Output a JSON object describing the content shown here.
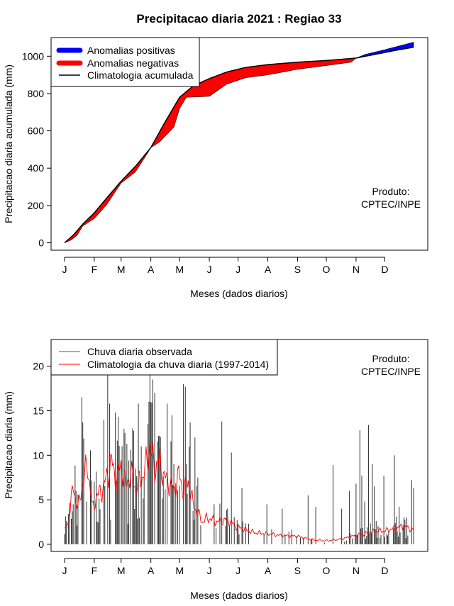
{
  "title": "Precipitacao diaria 2021 : Regiao 33",
  "colors": {
    "positive": "#0000ff",
    "negative": "#ff0000",
    "climatology_line": "#000000",
    "observed": "#000000",
    "clim_daily": "#ff0000"
  },
  "chart_data": [
    {
      "type": "area",
      "name": "accumulated",
      "ylabel": "Precipitacao diaria acumulada (mm)",
      "xlabel": "Meses (dados diarios)",
      "ylim": [
        -40,
        1100
      ],
      "y_ticks": [
        0,
        200,
        400,
        600,
        800,
        1000
      ],
      "x_ticks": [
        {
          "label": "J",
          "day": 1
        },
        {
          "label": "F",
          "day": 32
        },
        {
          "label": "M",
          "day": 60
        },
        {
          "label": "A",
          "day": 91
        },
        {
          "label": "M",
          "day": 121
        },
        {
          "label": "J",
          "day": 152
        },
        {
          "label": "J",
          "day": 182
        },
        {
          "label": "A",
          "day": 213
        },
        {
          "label": "S",
          "day": 244
        },
        {
          "label": "O",
          "day": 274
        },
        {
          "label": "N",
          "day": 305
        },
        {
          "label": "D",
          "day": 335
        }
      ],
      "legend": {
        "position": "top-left",
        "entries": [
          "Anomalias positivas",
          "Anomalias negativas",
          "Climatologia acumulada"
        ]
      },
      "annotation": [
        "Produto:",
        "CPTEC/INPE"
      ],
      "climatology": {
        "days": [
          1,
          10,
          20,
          32,
          45,
          60,
          75,
          91,
          105,
          121,
          135,
          152,
          170,
          190,
          213,
          244,
          274,
          305,
          320,
          335,
          350,
          365
        ],
        "values": [
          0,
          40,
          100,
          160,
          240,
          330,
          410,
          510,
          640,
          780,
          840,
          880,
          915,
          940,
          955,
          968,
          977,
          990,
          1005,
          1020,
          1035,
          1048
        ]
      },
      "observed": {
        "days": [
          1,
          8,
          14,
          20,
          32,
          45,
          60,
          75,
          85,
          91,
          100,
          115,
          121,
          128,
          152,
          170,
          190,
          213,
          244,
          274,
          300,
          305,
          315,
          335,
          350,
          365
        ],
        "values": [
          0,
          15,
          40,
          90,
          130,
          205,
          320,
          380,
          460,
          510,
          540,
          620,
          720,
          780,
          785,
          850,
          885,
          900,
          930,
          950,
          968,
          990,
          1010,
          1035,
          1055,
          1075
        ]
      }
    },
    {
      "type": "bar",
      "name": "daily",
      "ylabel": "Precipitacao diaria (mm)",
      "xlabel": "Meses (dados diarios)",
      "ylim": [
        -0.8,
        23
      ],
      "y_ticks": [
        0,
        5,
        10,
        15,
        20
      ],
      "x_ticks": [
        {
          "label": "J",
          "day": 1
        },
        {
          "label": "F",
          "day": 32
        },
        {
          "label": "M",
          "day": 60
        },
        {
          "label": "A",
          "day": 91
        },
        {
          "label": "M",
          "day": 121
        },
        {
          "label": "J",
          "day": 152
        },
        {
          "label": "J",
          "day": 182
        },
        {
          "label": "A",
          "day": 213
        },
        {
          "label": "S",
          "day": 244
        },
        {
          "label": "O",
          "day": 274
        },
        {
          "label": "N",
          "day": 305
        },
        {
          "label": "D",
          "day": 335
        }
      ],
      "legend": {
        "position": "top-left",
        "entries": [
          "Chuva diaria observada",
          "Climatologia da chuva diaria (1997-2014)"
        ]
      },
      "annotation": [
        "Produto:",
        "CPTEC/INPE"
      ],
      "observed_peaks": [
        {
          "day": 19,
          "value": 16.5
        },
        {
          "day": 20,
          "value": 13.7
        },
        {
          "day": 10,
          "value": 4.5
        },
        {
          "day": 13,
          "value": 6.0
        },
        {
          "day": 42,
          "value": 14.0
        },
        {
          "day": 46,
          "value": 19.2
        },
        {
          "day": 48,
          "value": 15.8
        },
        {
          "day": 54,
          "value": 14.8
        },
        {
          "day": 57,
          "value": 14.3
        },
        {
          "day": 64,
          "value": 12.5
        },
        {
          "day": 72,
          "value": 13.0
        },
        {
          "day": 78,
          "value": 15.8
        },
        {
          "day": 88,
          "value": 13.5
        },
        {
          "day": 90,
          "value": 19.0
        },
        {
          "day": 93,
          "value": 18.5
        },
        {
          "day": 95,
          "value": 17.0
        },
        {
          "day": 108,
          "value": 15.8
        },
        {
          "day": 113,
          "value": 14.5
        },
        {
          "day": 125,
          "value": 18.0
        },
        {
          "day": 127,
          "value": 17.7
        },
        {
          "day": 132,
          "value": 13.7
        },
        {
          "day": 137,
          "value": 12.0
        },
        {
          "day": 140,
          "value": 7.5
        },
        {
          "day": 165,
          "value": 13.8
        },
        {
          "day": 175,
          "value": 10.3
        },
        {
          "day": 186,
          "value": 6.3
        },
        {
          "day": 212,
          "value": 4.5
        },
        {
          "day": 228,
          "value": 4.0
        },
        {
          "day": 255,
          "value": 5.5
        },
        {
          "day": 263,
          "value": 4.2
        },
        {
          "day": 281,
          "value": 8.9
        },
        {
          "day": 290,
          "value": 4.0
        },
        {
          "day": 298,
          "value": 6.0
        },
        {
          "day": 305,
          "value": 6.8
        },
        {
          "day": 309,
          "value": 12.8
        },
        {
          "day": 311,
          "value": 7.7
        },
        {
          "day": 314,
          "value": 4.8
        },
        {
          "day": 318,
          "value": 13.4
        },
        {
          "day": 322,
          "value": 9.0
        },
        {
          "day": 324,
          "value": 6.5
        },
        {
          "day": 334,
          "value": 7.7
        },
        {
          "day": 345,
          "value": 10.0
        },
        {
          "day": 350,
          "value": 4.2
        },
        {
          "day": 358,
          "value": 3.0
        },
        {
          "day": 363,
          "value": 7.2
        },
        {
          "day": 365,
          "value": 6.3
        }
      ],
      "climatology_daily": {
        "days": [
          1,
          5,
          10,
          15,
          20,
          25,
          30,
          35,
          40,
          45,
          50,
          55,
          60,
          65,
          70,
          75,
          80,
          85,
          90,
          95,
          100,
          105,
          110,
          115,
          120,
          125,
          130,
          135,
          140,
          145,
          150,
          160,
          170,
          180,
          190,
          200,
          213,
          225,
          244,
          260,
          274,
          290,
          305,
          315,
          325,
          335,
          345,
          355,
          365
        ],
        "values": [
          1.5,
          2.5,
          6.5,
          4.0,
          7.0,
          9.0,
          4.0,
          5.5,
          6.0,
          7.5,
          9.3,
          7.0,
          9.0,
          6.5,
          8.0,
          6.5,
          7.0,
          8.5,
          11.0,
          8.5,
          9.5,
          7.5,
          7.0,
          6.0,
          7.8,
          6.0,
          7.0,
          4.5,
          3.5,
          2.5,
          3.0,
          2.5,
          2.8,
          2.0,
          1.6,
          1.3,
          1.2,
          1.0,
          0.9,
          0.5,
          0.4,
          0.6,
          1.0,
          1.2,
          1.5,
          1.5,
          1.8,
          2.0,
          1.6
        ]
      }
    }
  ]
}
